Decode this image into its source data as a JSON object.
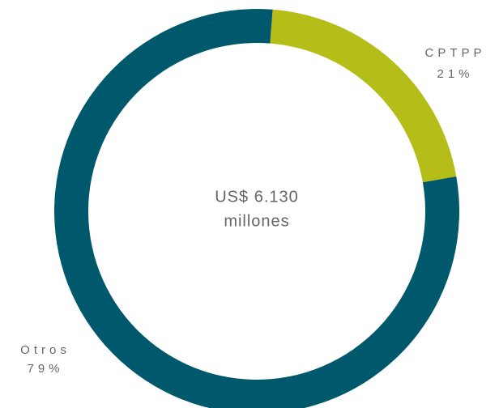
{
  "chart_data": {
    "type": "donut",
    "categories": [
      "CPTPP",
      "Otros"
    ],
    "values": [
      21,
      79
    ],
    "value_labels": [
      "21%",
      "79%"
    ],
    "colors": [
      "#b5bd19",
      "#00586c"
    ],
    "annotations": [
      "US$ 6.130",
      "millones"
    ]
  }
}
